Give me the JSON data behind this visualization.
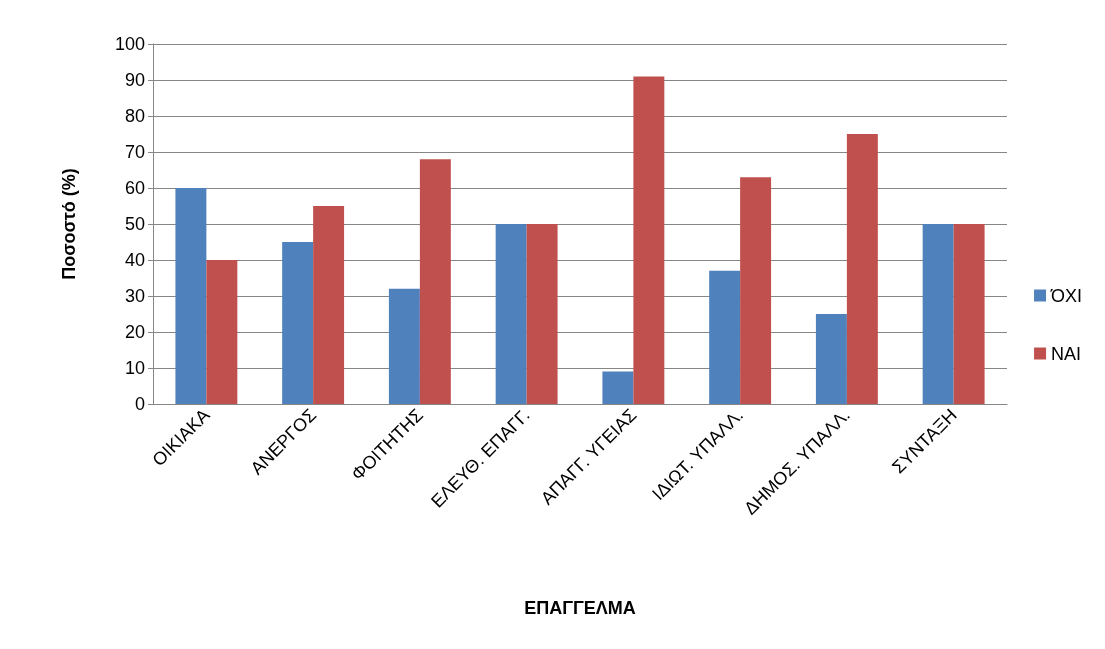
{
  "chart_data": {
    "type": "bar",
    "xlabel": "ΕΠΑΓΓΕΛΜΑ",
    "ylabel": "Ποσοστό (%)",
    "categories": [
      "ΟΙΚΙΑΚΑ",
      "ΑΝΕΡΓΟΣ",
      "ΦΟΙΤΗΤΗΣ",
      "ΕΛΕΥΘ. ΕΠΑΓΓ.",
      "ΑΠΑΓΓ. ΥΓΕΙΑΣ",
      "ΙΔΙΩΤ. ΥΠΑΛΛ.",
      "ΔΗΜΟΣ. ΥΠΑΛΛ.",
      "ΣΥΝΤΑΞΗ"
    ],
    "series": [
      {
        "name": "ΌΧΙ",
        "color": "#4f81bd",
        "values": [
          60,
          45,
          32,
          50,
          9,
          37,
          25,
          50
        ]
      },
      {
        "name": "ΝΑΙ",
        "color": "#c0504d",
        "values": [
          40,
          55,
          68,
          50,
          91,
          63,
          75,
          50
        ]
      }
    ],
    "ylim": [
      0,
      100
    ],
    "yticks": [
      0,
      10,
      20,
      30,
      40,
      50,
      60,
      70,
      80,
      90,
      100
    ],
    "grid": "y",
    "legend": "right"
  }
}
